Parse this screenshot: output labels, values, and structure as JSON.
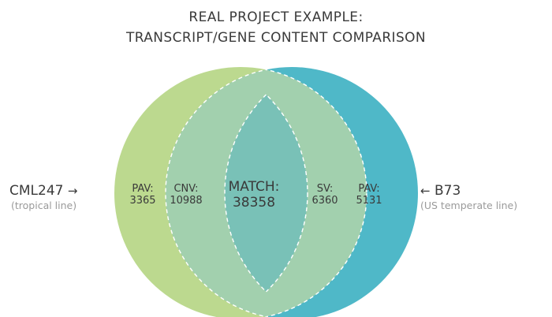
{
  "title": {
    "line1": "REAL PROJECT EXAMPLE:",
    "line2": "TRANSCRIPT/GENE CONTENT COMPARISON"
  },
  "left_genome": {
    "name": "CML247",
    "arrow": "→",
    "description": "(tropical line)",
    "color": "#bcd98f"
  },
  "right_genome": {
    "name": "B73",
    "arrow": "←",
    "description": "(US temperate line)",
    "color": "#4fb8c8"
  },
  "regions": {
    "pav_left": {
      "label": "PAV:",
      "value": "3365"
    },
    "cnv": {
      "label": "CNV:",
      "value": "10988"
    },
    "match": {
      "label": "MATCH:",
      "value": "38358"
    },
    "sv": {
      "label": "SV:",
      "value": "6360"
    },
    "pav_right": {
      "label": "PAV:",
      "value": "5131"
    }
  },
  "colors": {
    "match_region": "#79c1b7",
    "cnv_sv_region": "#a2d0ae",
    "dashed_line": "#ffffff"
  }
}
